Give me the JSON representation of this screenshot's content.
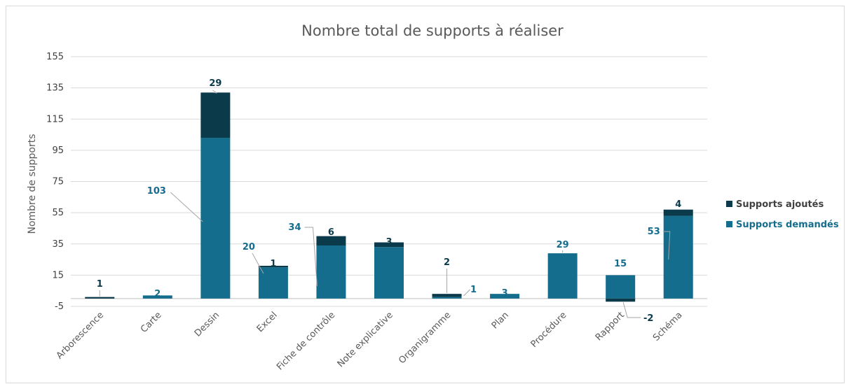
{
  "chart_data": {
    "type": "bar",
    "stacked": true,
    "title": "Nombre total de supports à réaliser",
    "ylabel": "Nombre de supports",
    "xlabel": "",
    "ylim": [
      -5,
      155
    ],
    "yticks": [
      -5,
      15,
      35,
      55,
      75,
      95,
      115,
      135,
      155
    ],
    "categories": [
      "Arborescence",
      "Carte",
      "Dessin",
      "Excel",
      "Fiche de contrôle",
      "Note explicative",
      "Organigramme",
      "Plan",
      "Procédure",
      "Rapport",
      "Schéma"
    ],
    "series": [
      {
        "name": "Supports demandés",
        "color": "#156d8d",
        "values": [
          null,
          2,
          103,
          20,
          34,
          33,
          1,
          3,
          29,
          15,
          53
        ]
      },
      {
        "name": "Supports ajoutés",
        "color": "#0b3a4a",
        "values": [
          1,
          null,
          29,
          1,
          6,
          3,
          2,
          null,
          null,
          -2,
          4
        ]
      }
    ],
    "legend_position": "right",
    "legend_order": [
      "Supports ajoutés",
      "Supports demandés"
    ],
    "grid": "horizontal"
  }
}
